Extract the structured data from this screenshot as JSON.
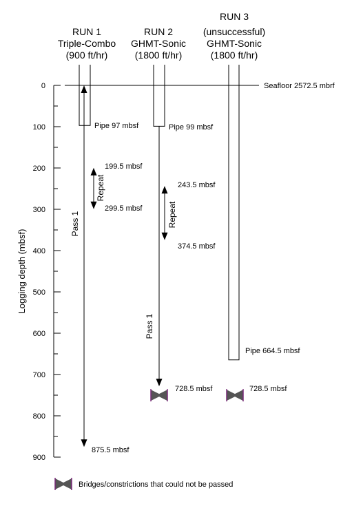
{
  "runs": [
    {
      "line1": "RUN 1",
      "line2": "Triple-Combo",
      "line3": "(900 ft/hr)",
      "line4": ""
    },
    {
      "line1": "RUN 2",
      "line2": "GHMT-Sonic",
      "line3": "(1800 ft/hr)",
      "line4": ""
    },
    {
      "line1": "RUN 3",
      "line2": "(unsuccessful)",
      "line3": "GHMT-Sonic",
      "line4": "(1800 ft/hr)"
    }
  ],
  "axis": {
    "label": "Logging depth (mbsf)",
    "ticks": [
      "0",
      "100",
      "200",
      "300",
      "400",
      "500",
      "600",
      "700",
      "800",
      "900"
    ],
    "range": [
      0,
      900
    ]
  },
  "seafloor_label": "Seafloor 2572.5 mbrf",
  "pipes": [
    {
      "label": "Pipe 97 mbsf",
      "depth": 97
    },
    {
      "label": "Pipe 99 mbsf",
      "depth": 99
    },
    {
      "label": "Pipe 664.5 mbsf",
      "depth": 664.5
    }
  ],
  "passes": [
    {
      "label": "Pass 1",
      "top_depth": 0,
      "bottom_depth": 875.5,
      "bottom_label": "875.5 mbsf"
    },
    {
      "label": "Pass 1",
      "top_depth": 99,
      "bottom_depth": 728.5,
      "bottom_label": "728.5 mbsf"
    }
  ],
  "repeats": [
    {
      "label": "Repeat",
      "top_depth": 199.5,
      "bottom_depth": 299.5,
      "top_label": "199.5 mbsf",
      "bottom_label": "299.5 mbsf"
    },
    {
      "label": "Repeat",
      "top_depth": 243.5,
      "bottom_depth": 374.5,
      "top_label": "243.5 mbsf",
      "bottom_label": "374.5 mbsf"
    }
  ],
  "bridges": [
    {
      "depth": 728.5,
      "label": "728.5 mbsf"
    },
    {
      "depth": 728.5,
      "label": "728.5 mbsf"
    }
  ],
  "legend": {
    "label": "Bridges/constrictions that could not be passed"
  },
  "colors": {
    "line": "#000000",
    "bridge_fill": "#555555",
    "bridge_edge": "#7a2a7a"
  }
}
